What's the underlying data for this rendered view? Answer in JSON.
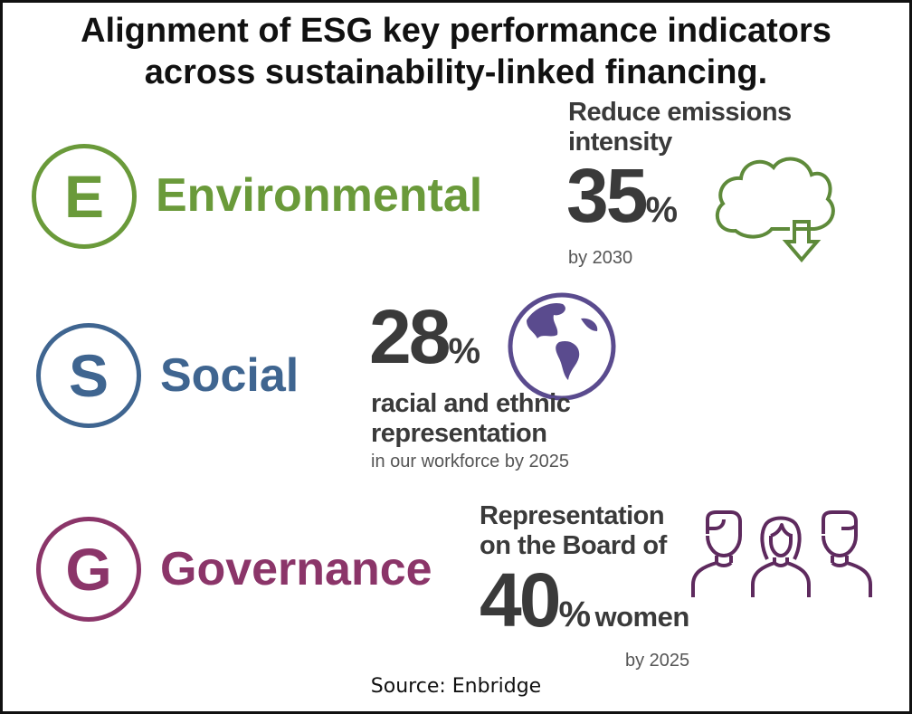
{
  "title_lines": [
    "Alignment of ESG key performance indicators",
    "across sustainability-linked financing."
  ],
  "colors": {
    "environmental": "#6a9a3a",
    "social": "#3f6590",
    "governance": "#8b3569",
    "globe": "#5a4b8e",
    "people": "#5e2a5e",
    "text": "#3a3a3a"
  },
  "environmental": {
    "letter": "E",
    "label": "Environmental",
    "kpi_line1": "Reduce emissions",
    "kpi_line2": "intensity",
    "value": "35",
    "unit": "%",
    "note": "by 2030",
    "icon": "cloud-down-arrow-icon"
  },
  "social": {
    "letter": "S",
    "label": "Social",
    "value": "28",
    "unit": "%",
    "kpi_line1": "racial and ethnic",
    "kpi_line2": "representation",
    "note": "in our workforce by 2025",
    "icon": "globe-icon"
  },
  "governance": {
    "letter": "G",
    "label": "Governance",
    "kpi_line1": "Representation",
    "kpi_line2": "on the Board of",
    "value": "40",
    "unit": "%",
    "suffix": "women",
    "note": "by 2025",
    "icon": "people-icon"
  },
  "source": "Source: Enbridge"
}
